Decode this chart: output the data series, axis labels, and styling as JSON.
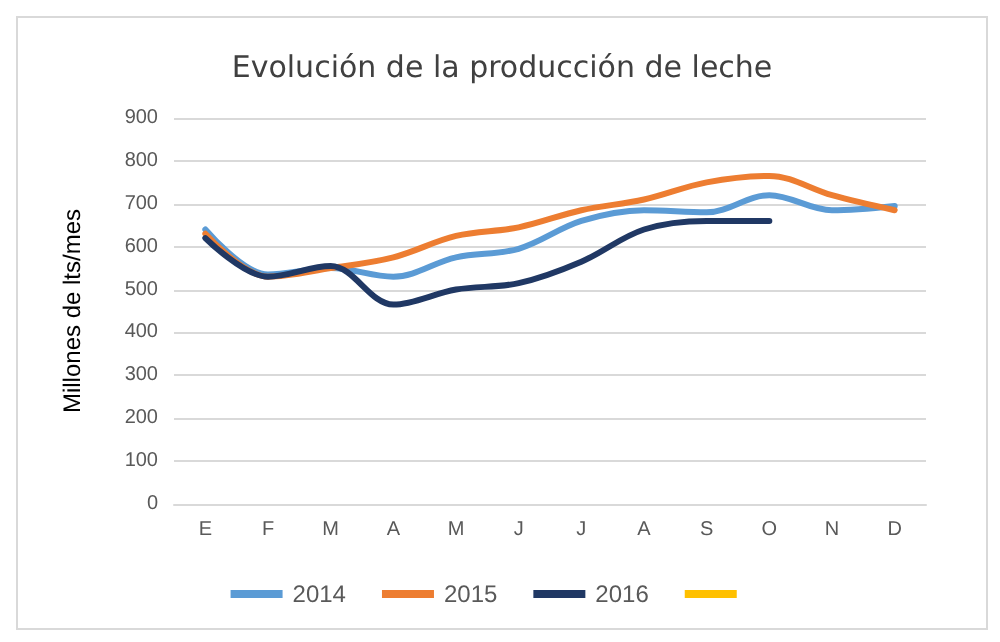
{
  "chart_data": {
    "type": "line",
    "title": "Evolución de la producción de leche",
    "ylabel": "Millones de lts/mes",
    "categories": [
      "E",
      "F",
      "M",
      "A",
      "M",
      "J",
      "J",
      "A",
      "S",
      "O",
      "N",
      "D"
    ],
    "series": [
      {
        "name": "2014",
        "color": "#5b9bd5",
        "values": [
          640,
          535,
          550,
          530,
          575,
          595,
          660,
          685,
          680,
          720,
          685,
          695
        ]
      },
      {
        "name": "2015",
        "color": "#ed7d31",
        "values": [
          630,
          530,
          550,
          575,
          625,
          645,
          685,
          710,
          750,
          765,
          720,
          685
        ]
      },
      {
        "name": "2016",
        "color": "#203864",
        "values": [
          620,
          530,
          555,
          465,
          500,
          515,
          565,
          640,
          660,
          660,
          null,
          null
        ]
      },
      {
        "color": "#ffc000",
        "values": [
          null,
          null,
          null,
          null,
          null,
          null,
          null,
          null,
          null,
          null,
          null,
          null
        ]
      }
    ],
    "ylim": [
      0,
      900
    ],
    "yticks": [
      0,
      100,
      200,
      300,
      400,
      500,
      600,
      700,
      800,
      900
    ],
    "grid": "y",
    "legend": "bottom",
    "marker": "none",
    "line_style": "solid"
  }
}
